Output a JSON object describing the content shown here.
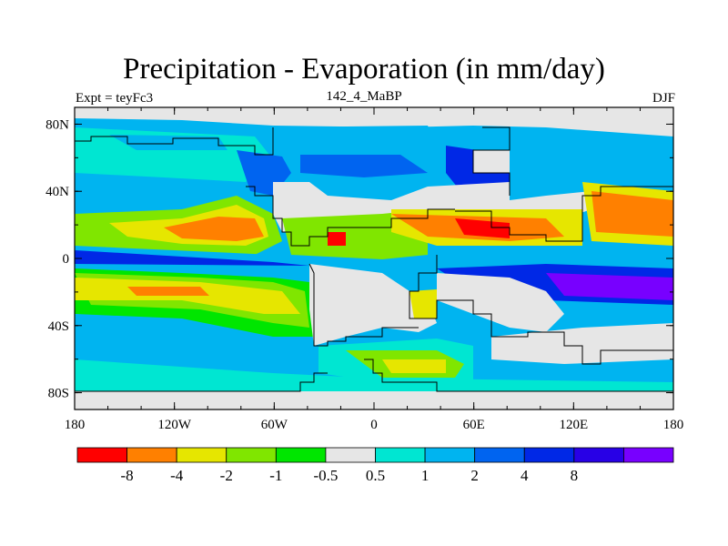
{
  "title": "Precipitation - Evaporation (in mm/day)",
  "left_subtitle": "Expt = teyFc3",
  "center_subtitle": "142_4_MaBP",
  "right_subtitle": "DJF",
  "colors": {
    "ocean_neg": "#f3c800",
    "dry_strong": "#ff0000",
    "dry": "#ff8000",
    "mod_dry": "#e6e600",
    "light_dry": "#80e600",
    "slight_dry": "#00e600",
    "neutral": "#e6e6e6",
    "slight_wet": "#00e6d2",
    "light_wet": "#00b4f0",
    "mod_wet": "#0064f0",
    "wet": "#0028e6",
    "very_wet": "#2800e6",
    "extreme_wet": "#7800ff"
  },
  "map": {
    "x_ticks": [
      {
        "value": -180,
        "label": "180"
      },
      {
        "value": -120,
        "label": "120W"
      },
      {
        "value": -60,
        "label": "60W"
      },
      {
        "value": 0,
        "label": "0"
      },
      {
        "value": 60,
        "label": "60E"
      },
      {
        "value": 120,
        "label": "120E"
      },
      {
        "value": 180,
        "label": "180"
      }
    ],
    "y_ticks": [
      {
        "value": 80,
        "label": "80N"
      },
      {
        "value": 40,
        "label": "40N"
      },
      {
        "value": 0,
        "label": "0"
      },
      {
        "value": -40,
        "label": "40S"
      },
      {
        "value": -80,
        "label": "80S"
      }
    ]
  },
  "colorbar": {
    "colors": [
      "#ff0000",
      "#ff8000",
      "#e6e600",
      "#80e600",
      "#00e600",
      "#e6e6e6",
      "#00e6d2",
      "#00b4f0",
      "#0064f0",
      "#0028e6",
      "#2800e6",
      "#7800ff"
    ],
    "labels": [
      "-8",
      "-4",
      "-2",
      "-1",
      "-0.5",
      "0.5",
      "1",
      "2",
      "4",
      "8"
    ]
  }
}
